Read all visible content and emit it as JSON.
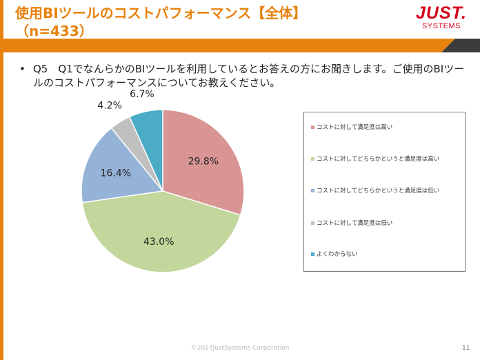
{
  "slide": {
    "title_line1": "使用BIツールのコストパフォーマンス【全体】",
    "title_line2": "（n=433）",
    "logo_line1": "JUST.",
    "logo_line2": "SYSTEMS",
    "bullet": "•",
    "question": "Q5　Q1でなんらかのBIツールを利用しているとお答えの方にお聞きします。ご使用のBIツールのコストパフォーマンスについてお教えください。",
    "footer": "©2017JustSystems Corporation",
    "page_number": "11",
    "accent_color": "#e8820e",
    "brand_color": "#d4001a"
  },
  "chart_data": {
    "type": "pie",
    "unit": "%",
    "categories": [
      "コストに対して満足度は高い",
      "コストに対してどちらかというと満足度は高い",
      "コストに対してどちらかというと満足度は低い",
      "コストに対して満足度は低い",
      "よくわからない"
    ],
    "values": [
      29.8,
      43.0,
      16.4,
      4.2,
      6.7
    ],
    "labels": [
      "29.8%",
      "43.0%",
      "16.4%",
      "4.2%",
      "6.7%"
    ],
    "colors": [
      "#d99594",
      "#c3d69b",
      "#95b3d7",
      "#c0c0c0",
      "#4bacc6"
    ],
    "legend_position": "right"
  }
}
